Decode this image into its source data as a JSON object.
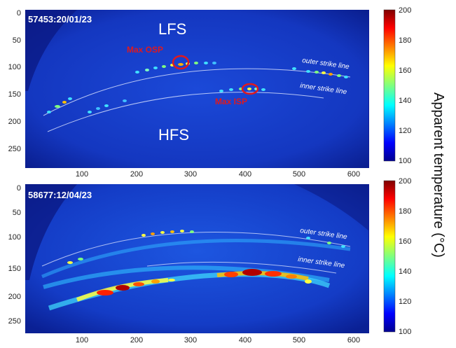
{
  "figure": {
    "colorbar_title": "Apparent temperature (°C)",
    "colormap": "jet",
    "panels": [
      {
        "id_label": "57453:20/01/23",
        "region_labels": {
          "top": "LFS",
          "bottom": "HFS"
        },
        "strike_line_labels": {
          "outer": "outer strike line",
          "inner": "inner strike line"
        },
        "markers": {
          "osp": "Max OSP",
          "isp": "Max ISP"
        },
        "x_ticks": [
          "100",
          "200",
          "300",
          "400",
          "500",
          "600"
        ],
        "y_ticks": [
          "0",
          "50",
          "100",
          "150",
          "200",
          "250"
        ],
        "colorbar_ticks": [
          "200",
          "180",
          "160",
          "140",
          "120",
          "100"
        ]
      },
      {
        "id_label": "58677:12/04/23",
        "strike_line_labels": {
          "outer": "outer strike line",
          "inner": "inner strike line"
        },
        "x_ticks": [
          "100",
          "200",
          "300",
          "400",
          "500",
          "600"
        ],
        "y_ticks": [
          "0",
          "50",
          "100",
          "150",
          "200",
          "250"
        ],
        "colorbar_ticks": [
          "200",
          "180",
          "160",
          "140",
          "120",
          "100"
        ]
      }
    ]
  }
}
